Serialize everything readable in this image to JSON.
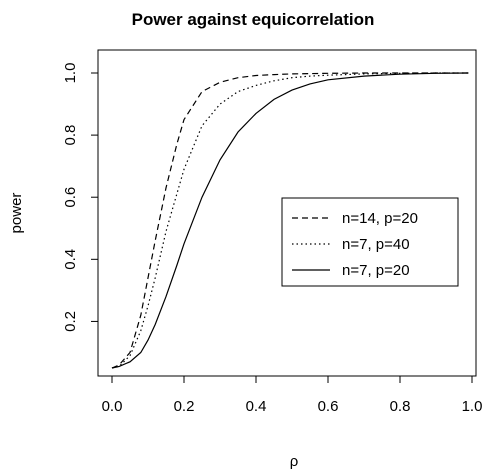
{
  "chart_data": {
    "type": "line",
    "title": "Power against equicorrelation",
    "xlabel": "ρ",
    "ylabel": "power",
    "xlim": [
      0.0,
      1.0
    ],
    "ylim": [
      0.05,
      1.0
    ],
    "xticks": [
      "0.0",
      "0.2",
      "0.4",
      "0.6",
      "0.8",
      "1.0"
    ],
    "yticks": [
      "0.2",
      "0.4",
      "0.6",
      "0.8",
      "1.0"
    ],
    "grid": false,
    "legend_position": "right",
    "x": [
      0.0,
      0.02,
      0.05,
      0.08,
      0.1,
      0.12,
      0.15,
      0.18,
      0.2,
      0.25,
      0.3,
      0.35,
      0.4,
      0.45,
      0.5,
      0.55,
      0.6,
      0.7,
      0.8,
      0.9,
      0.99
    ],
    "series": [
      {
        "name": "n=14, p=20",
        "dash": "dashed",
        "values": [
          0.05,
          0.06,
          0.1,
          0.22,
          0.34,
          0.46,
          0.63,
          0.77,
          0.85,
          0.94,
          0.97,
          0.985,
          0.992,
          0.995,
          0.997,
          0.998,
          0.999,
          1.0,
          1.0,
          1.0,
          1.0
        ]
      },
      {
        "name": "n=7, p=40",
        "dash": "dotted",
        "values": [
          0.05,
          0.055,
          0.09,
          0.17,
          0.25,
          0.34,
          0.49,
          0.61,
          0.69,
          0.83,
          0.9,
          0.94,
          0.96,
          0.975,
          0.985,
          0.99,
          0.993,
          0.997,
          0.999,
          1.0,
          1.0
        ]
      },
      {
        "name": "n=7, p=20",
        "dash": "solid",
        "values": [
          0.05,
          0.055,
          0.07,
          0.1,
          0.14,
          0.19,
          0.28,
          0.38,
          0.45,
          0.6,
          0.72,
          0.81,
          0.87,
          0.915,
          0.945,
          0.965,
          0.978,
          0.99,
          0.996,
          0.999,
          1.0
        ]
      }
    ]
  }
}
